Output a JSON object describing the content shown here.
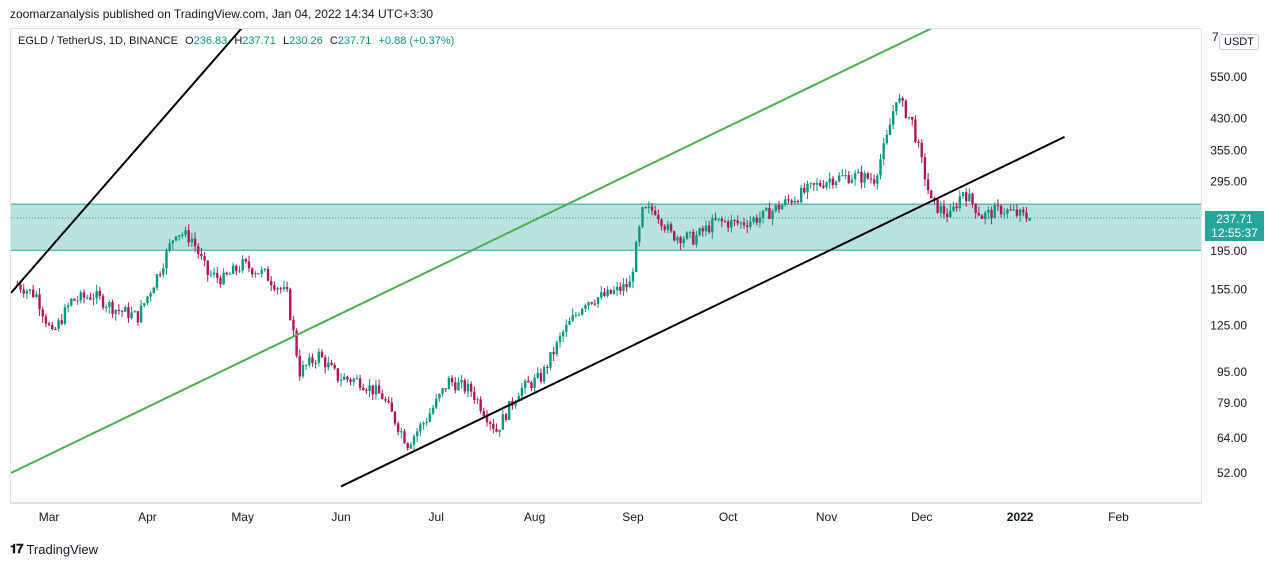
{
  "header": {
    "published": "zoomarzanalysis published on TradingView.com, Jan 04, 2022 14:34 UTC+3:30"
  },
  "legend": {
    "symbol": "EGLD / TetherUS, 1D, BINANCE",
    "o_label": "O",
    "o_value": "236.83",
    "h_label": "H",
    "h_value": "237.71",
    "l_label": "L",
    "l_value": "230.26",
    "c_label": "C",
    "c_value": "237.71",
    "change": "+0.88 (+0.37%)"
  },
  "price_axis": {
    "unit_button": "USDT",
    "top_cut_label": "7",
    "last_price": "237.71",
    "countdown": "12:55:37"
  },
  "footer": {
    "brand": "TradingView"
  },
  "colors": {
    "up": "#089981",
    "down": "#b0175a",
    "zone_fill": "#b2dfdb",
    "zone_border": "#26a69a",
    "black_channel": "#000000",
    "green_channel": "#4caf50"
  },
  "chart_data": {
    "type": "candlestick",
    "y_scale": "log",
    "y_ticks": [
      "550.00",
      "430.00",
      "355.00",
      "295.00",
      "195.00",
      "155.00",
      "125.00",
      "95.00",
      "79.00",
      "64.00",
      "52.00"
    ],
    "x_ticks": [
      "Mar",
      "Apr",
      "May",
      "Jun",
      "Jul",
      "Aug",
      "Sep",
      "Oct",
      "Nov",
      "Dec",
      "2022",
      "Feb"
    ],
    "close_path": [
      {
        "date": "2021-02-19",
        "close": 160
      },
      {
        "date": "2021-02-25",
        "close": 150
      },
      {
        "date": "2021-03-02",
        "close": 118
      },
      {
        "date": "2021-03-08",
        "close": 145
      },
      {
        "date": "2021-03-15",
        "close": 150
      },
      {
        "date": "2021-03-22",
        "close": 138
      },
      {
        "date": "2021-03-29",
        "close": 132
      },
      {
        "date": "2021-04-05",
        "close": 175
      },
      {
        "date": "2021-04-10",
        "close": 220
      },
      {
        "date": "2021-04-15",
        "close": 210
      },
      {
        "date": "2021-04-20",
        "close": 170
      },
      {
        "date": "2021-04-25",
        "close": 165
      },
      {
        "date": "2021-05-01",
        "close": 180
      },
      {
        "date": "2021-05-08",
        "close": 170
      },
      {
        "date": "2021-05-15",
        "close": 150
      },
      {
        "date": "2021-05-19",
        "close": 95
      },
      {
        "date": "2021-05-25",
        "close": 105
      },
      {
        "date": "2021-05-31",
        "close": 92
      },
      {
        "date": "2021-06-07",
        "close": 90
      },
      {
        "date": "2021-06-14",
        "close": 82
      },
      {
        "date": "2021-06-22",
        "close": 62
      },
      {
        "date": "2021-06-28",
        "close": 72
      },
      {
        "date": "2021-07-05",
        "close": 90
      },
      {
        "date": "2021-07-12",
        "close": 85
      },
      {
        "date": "2021-07-20",
        "close": 67
      },
      {
        "date": "2021-07-27",
        "close": 85
      },
      {
        "date": "2021-08-03",
        "close": 92
      },
      {
        "date": "2021-08-10",
        "close": 120
      },
      {
        "date": "2021-08-17",
        "close": 145
      },
      {
        "date": "2021-08-24",
        "close": 150
      },
      {
        "date": "2021-08-31",
        "close": 160
      },
      {
        "date": "2021-09-04",
        "close": 245
      },
      {
        "date": "2021-09-08",
        "close": 250
      },
      {
        "date": "2021-09-13",
        "close": 215
      },
      {
        "date": "2021-09-20",
        "close": 210
      },
      {
        "date": "2021-09-27",
        "close": 232
      },
      {
        "date": "2021-10-05",
        "close": 230
      },
      {
        "date": "2021-10-12",
        "close": 240
      },
      {
        "date": "2021-10-19",
        "close": 260
      },
      {
        "date": "2021-10-26",
        "close": 280
      },
      {
        "date": "2021-11-02",
        "close": 300
      },
      {
        "date": "2021-11-09",
        "close": 305
      },
      {
        "date": "2021-11-16",
        "close": 300
      },
      {
        "date": "2021-11-20",
        "close": 380
      },
      {
        "date": "2021-11-23",
        "close": 490
      },
      {
        "date": "2021-11-28",
        "close": 420
      },
      {
        "date": "2021-12-04",
        "close": 260
      },
      {
        "date": "2021-12-10",
        "close": 240
      },
      {
        "date": "2021-12-14",
        "close": 280
      },
      {
        "date": "2021-12-20",
        "close": 240
      },
      {
        "date": "2021-12-26",
        "close": 250
      },
      {
        "date": "2022-01-04",
        "close": 237.71
      }
    ],
    "zone": {
      "top": 258,
      "bottom": 196
    },
    "channels": [
      {
        "color": "#000000",
        "points": [
          [
            "2021-02-17",
            152
          ],
          [
            "2021-05-10",
            900
          ]
        ]
      },
      {
        "color": "#000000",
        "points": [
          [
            "2021-06-01",
            48
          ],
          [
            "2022-01-15",
            385
          ]
        ]
      },
      {
        "color": "#4caf50",
        "points": [
          [
            "2021-02-17",
            52
          ],
          [
            "2021-12-20",
            850
          ]
        ]
      }
    ]
  }
}
